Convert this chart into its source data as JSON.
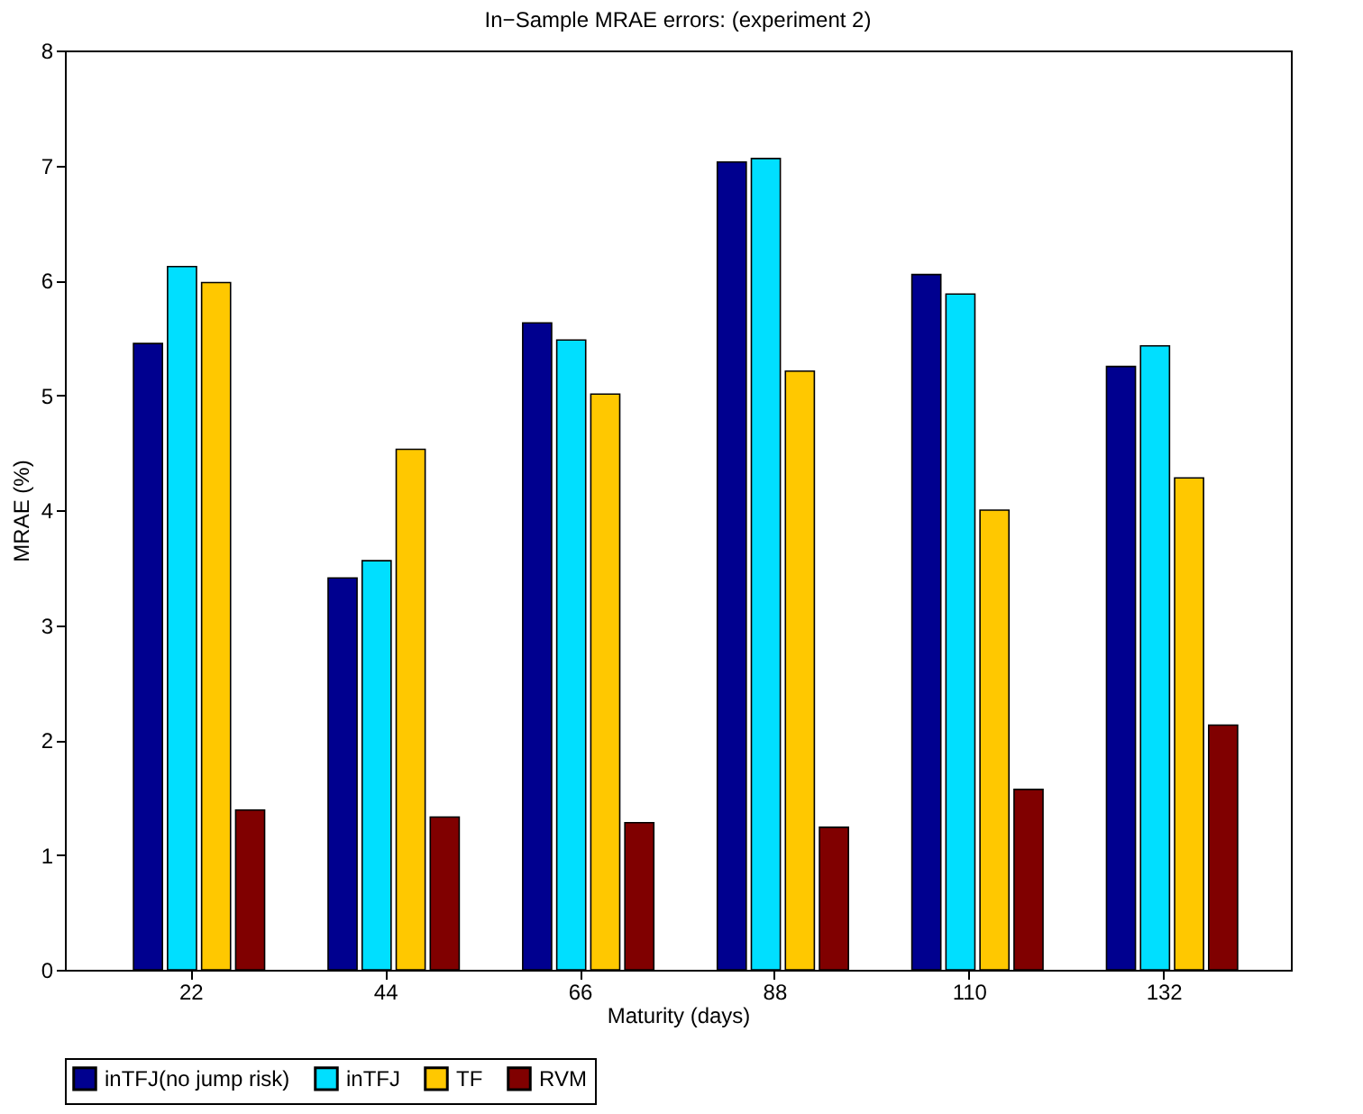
{
  "chart_data": {
    "type": "bar",
    "title": "In−Sample MRAE errors: (experiment 2)",
    "xlabel": "Maturity (days)",
    "ylabel": "MRAE (%)",
    "categories": [
      "22",
      "44",
      "66",
      "88",
      "110",
      "132"
    ],
    "series": [
      {
        "name": "inTFJ(no jump risk)",
        "color": "#00008f",
        "values": [
          5.45,
          3.41,
          5.63,
          7.03,
          6.05,
          5.25
        ]
      },
      {
        "name": "inTFJ",
        "color": "#00dfff",
        "values": [
          6.12,
          3.56,
          5.48,
          7.06,
          5.88,
          5.43
        ]
      },
      {
        "name": "TF",
        "color": "#ffc800",
        "values": [
          5.98,
          4.53,
          5.01,
          5.21,
          4.0,
          4.28
        ]
      },
      {
        "name": "RVM",
        "color": "#800000",
        "values": [
          1.39,
          1.33,
          1.28,
          1.24,
          1.57,
          2.13
        ]
      }
    ],
    "ylim": [
      0,
      8
    ],
    "yticks": [
      0,
      1,
      2,
      3,
      4,
      5,
      6,
      7,
      8
    ],
    "grid": false,
    "legend": "bottom"
  }
}
